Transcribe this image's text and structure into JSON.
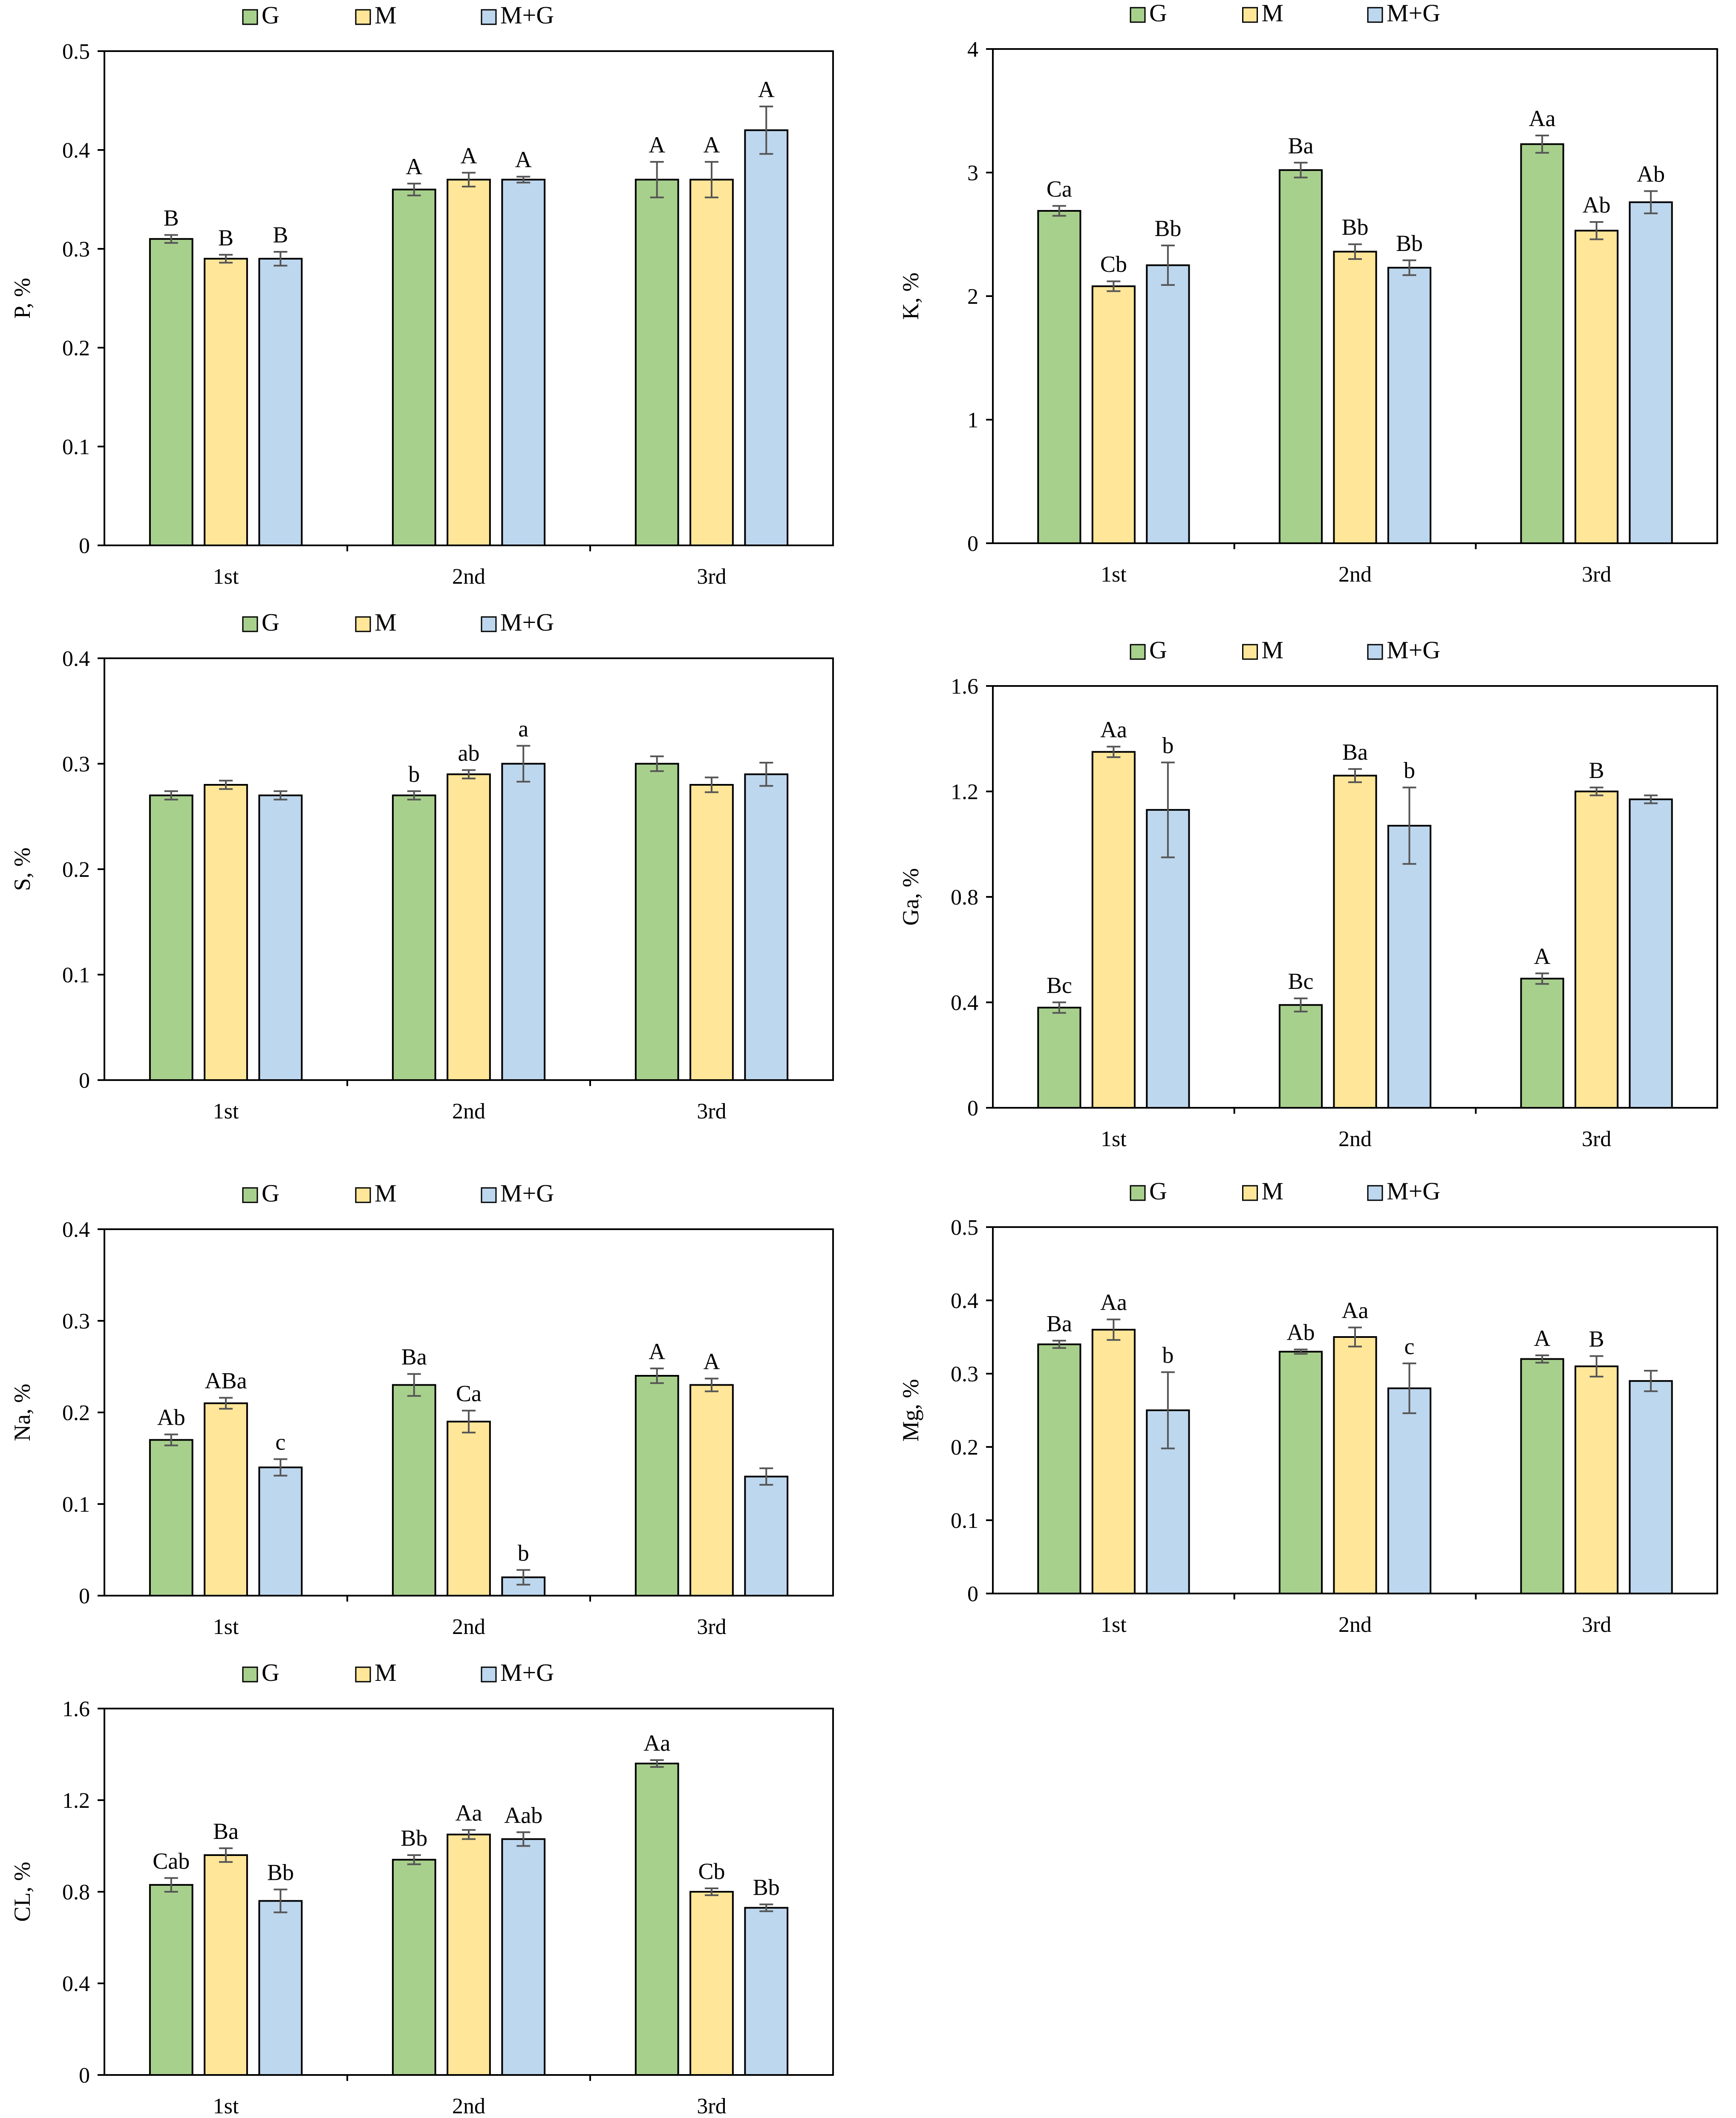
{
  "colors": {
    "G": "#a8d08d",
    "M": "#ffe699",
    "M+G": "#bdd7ee",
    "stroke": "#000000",
    "error": "#555555"
  },
  "chart_data": [
    {
      "id": "P",
      "type": "bar",
      "ylabel": "P, %",
      "categories": [
        "1st",
        "2nd",
        "3rd"
      ],
      "ylim": [
        0,
        0.5
      ],
      "yticks": [
        0,
        0.1,
        0.2,
        0.3,
        0.4,
        0.5
      ],
      "tick_labels": [
        "0",
        "0.1",
        "0.2",
        "0.3",
        "0.4",
        "0.5"
      ],
      "legend": [
        "G",
        "M",
        "M+G"
      ],
      "series": [
        {
          "name": "G",
          "values": [
            0.31,
            0.36,
            0.37
          ],
          "errors": [
            0.004,
            0.006,
            0.018
          ],
          "labels": [
            "B",
            "A",
            "A"
          ]
        },
        {
          "name": "M",
          "values": [
            0.29,
            0.37,
            0.37
          ],
          "errors": [
            0.004,
            0.007,
            0.018
          ],
          "labels": [
            "B",
            "A",
            "A"
          ]
        },
        {
          "name": "M+G",
          "values": [
            0.29,
            0.37,
            0.42
          ],
          "errors": [
            0.007,
            0.003,
            0.024
          ],
          "labels": [
            "B",
            "A",
            "A"
          ]
        }
      ]
    },
    {
      "id": "K",
      "type": "bar",
      "ylabel": "K, %",
      "categories": [
        "1st",
        "2nd",
        "3rd"
      ],
      "ylim": [
        0,
        4
      ],
      "yticks": [
        0,
        1,
        2,
        3,
        4
      ],
      "tick_labels": [
        "0",
        "1",
        "2",
        "3",
        "4"
      ],
      "legend": [
        "G",
        "M",
        "M+G"
      ],
      "series": [
        {
          "name": "G",
          "values": [
            2.69,
            3.02,
            3.23
          ],
          "errors": [
            0.04,
            0.06,
            0.07
          ],
          "labels": [
            "Ca",
            "Ba",
            "Aa"
          ]
        },
        {
          "name": "M",
          "values": [
            2.08,
            2.36,
            2.53
          ],
          "errors": [
            0.04,
            0.06,
            0.07
          ],
          "labels": [
            "Cb",
            "Bb",
            "Ab"
          ]
        },
        {
          "name": "M+G",
          "values": [
            2.25,
            2.23,
            2.76
          ],
          "errors": [
            0.16,
            0.06,
            0.09
          ],
          "labels": [
            "Bb",
            "Bb",
            "Ab"
          ]
        }
      ]
    },
    {
      "id": "S",
      "type": "bar",
      "ylabel": "S, %",
      "categories": [
        "1st",
        "2nd",
        "3rd"
      ],
      "ylim": [
        0,
        0.4
      ],
      "yticks": [
        0,
        0.1,
        0.2,
        0.3,
        0.4
      ],
      "tick_labels": [
        "0",
        "0.1",
        "0.2",
        "0.3",
        "0.4"
      ],
      "legend": [
        "G",
        "M",
        "M+G"
      ],
      "series": [
        {
          "name": "G",
          "values": [
            0.27,
            0.27,
            0.3
          ],
          "errors": [
            0.004,
            0.004,
            0.007
          ],
          "labels": [
            "",
            "b",
            ""
          ]
        },
        {
          "name": "M",
          "values": [
            0.28,
            0.29,
            0.28
          ],
          "errors": [
            0.004,
            0.004,
            0.007
          ],
          "labels": [
            "",
            "ab",
            ""
          ]
        },
        {
          "name": "M+G",
          "values": [
            0.27,
            0.3,
            0.29
          ],
          "errors": [
            0.004,
            0.017,
            0.011
          ],
          "labels": [
            "",
            "a",
            ""
          ]
        }
      ]
    },
    {
      "id": "Ga",
      "type": "bar",
      "ylabel": "Ga, %",
      "categories": [
        "1st",
        "2nd",
        "3rd"
      ],
      "ylim": [
        0,
        1.6
      ],
      "yticks": [
        0,
        0.4,
        0.8,
        1.2,
        1.6
      ],
      "tick_labels": [
        "0",
        "0.4",
        "0.8",
        "1.2",
        "1.6"
      ],
      "legend": [
        "G",
        "M",
        "M+G"
      ],
      "series": [
        {
          "name": "G",
          "values": [
            0.38,
            0.39,
            0.49
          ],
          "errors": [
            0.02,
            0.025,
            0.02
          ],
          "labels": [
            "Bc",
            "Bc",
            "A"
          ]
        },
        {
          "name": "M",
          "values": [
            1.35,
            1.26,
            1.2
          ],
          "errors": [
            0.02,
            0.025,
            0.015
          ],
          "labels": [
            "Aa",
            "Ba",
            "B"
          ]
        },
        {
          "name": "M+G",
          "values": [
            1.13,
            1.07,
            1.17
          ],
          "errors": [
            0.18,
            0.145,
            0.015
          ],
          "labels": [
            "b",
            "b",
            ""
          ]
        }
      ]
    },
    {
      "id": "Na",
      "type": "bar",
      "ylabel": "Na, %",
      "categories": [
        "1st",
        "2nd",
        "3rd"
      ],
      "ylim": [
        0,
        0.4
      ],
      "yticks": [
        0,
        0.1,
        0.2,
        0.3,
        0.4
      ],
      "tick_labels": [
        "0",
        "0.1",
        "0.2",
        "0.3",
        "0.4"
      ],
      "legend": [
        "G",
        "M",
        "M+G"
      ],
      "series": [
        {
          "name": "G",
          "values": [
            0.17,
            0.23,
            0.24
          ],
          "errors": [
            0.006,
            0.012,
            0.008
          ],
          "labels": [
            "Ab",
            "Ba",
            "A"
          ]
        },
        {
          "name": "M",
          "values": [
            0.21,
            0.19,
            0.23
          ],
          "errors": [
            0.006,
            0.012,
            0.007
          ],
          "labels": [
            "ABa",
            "Ca",
            "A"
          ]
        },
        {
          "name": "M+G",
          "values": [
            0.14,
            0.02,
            0.13
          ],
          "errors": [
            0.009,
            0.008,
            0.009
          ],
          "labels": [
            "c",
            "b",
            ""
          ]
        }
      ]
    },
    {
      "id": "Mg",
      "type": "bar",
      "ylabel": "Mg, %",
      "categories": [
        "1st",
        "2nd",
        "3rd"
      ],
      "ylim": [
        0,
        0.5
      ],
      "yticks": [
        0,
        0.1,
        0.2,
        0.3,
        0.4,
        0.5
      ],
      "tick_labels": [
        "0",
        "0.1",
        "0.2",
        "0.3",
        "0.4",
        "0.5"
      ],
      "legend": [
        "G",
        "M",
        "M+G"
      ],
      "series": [
        {
          "name": "G",
          "values": [
            0.34,
            0.33,
            0.32
          ],
          "errors": [
            0.005,
            0.003,
            0.005
          ],
          "labels": [
            "Ba",
            "Ab",
            "A"
          ]
        },
        {
          "name": "M",
          "values": [
            0.36,
            0.35,
            0.31
          ],
          "errors": [
            0.014,
            0.013,
            0.014
          ],
          "labels": [
            "Aa",
            "Aa",
            "B"
          ]
        },
        {
          "name": "M+G",
          "values": [
            0.25,
            0.28,
            0.29
          ],
          "errors": [
            0.052,
            0.034,
            0.014
          ],
          "labels": [
            "b",
            "c",
            ""
          ]
        }
      ]
    },
    {
      "id": "CL",
      "type": "bar",
      "ylabel": "CL, %",
      "categories": [
        "1st",
        "2nd",
        "3rd"
      ],
      "ylim": [
        0,
        1.6
      ],
      "yticks": [
        0,
        0.4,
        0.8,
        1.2,
        1.6
      ],
      "tick_labels": [
        "0",
        "0.4",
        "0.8",
        "1.2",
        "1.6"
      ],
      "legend": [
        "G",
        "M",
        "M+G"
      ],
      "series": [
        {
          "name": "G",
          "values": [
            0.83,
            0.94,
            1.36
          ],
          "errors": [
            0.03,
            0.02,
            0.015
          ],
          "labels": [
            "Cab",
            "Bb",
            "Aa"
          ]
        },
        {
          "name": "M",
          "values": [
            0.96,
            1.05,
            0.8
          ],
          "errors": [
            0.03,
            0.02,
            0.015
          ],
          "labels": [
            "Ba",
            "Aa",
            "Cb"
          ]
        },
        {
          "name": "M+G",
          "values": [
            0.76,
            1.03,
            0.73
          ],
          "errors": [
            0.05,
            0.03,
            0.015
          ],
          "labels": [
            "Bb",
            "Aab",
            "Bb"
          ]
        }
      ]
    }
  ]
}
